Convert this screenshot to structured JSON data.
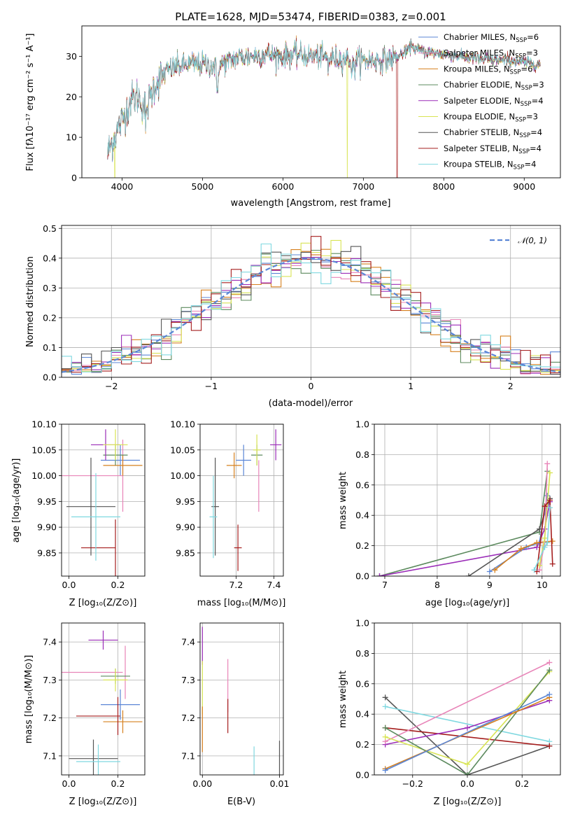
{
  "chart_data": [
    {
      "type": "line",
      "title": "PLATE=1628, MJD=53474, FIBERID=0383, z=0.001",
      "xlabel": "wavelength [Angstrom, rest frame]",
      "ylabel": "Flux [fλ10⁻¹⁷ erg cm⁻² s⁻¹ A⁻¹]",
      "xlim": [
        3500,
        9450
      ],
      "ylim": [
        0,
        37.5
      ],
      "xticks": [
        "4000",
        "5000",
        "6000",
        "7000",
        "8000",
        "9000"
      ],
      "yticks": [
        "0",
        "10",
        "20",
        "30"
      ],
      "legend": "upper-right",
      "series": [
        {
          "name": "Chabrier MILES, N_SSP=6",
          "color": "#5b86d6"
        },
        {
          "name": "Salpeter MILES, N_SSP=3",
          "color": "#e884b8"
        },
        {
          "name": "Kroupa MILES, N_SSP=6",
          "color": "#d6801e"
        },
        {
          "name": "Chabrier ELODIE, N_SSP=3",
          "color": "#5c8a5e"
        },
        {
          "name": "Salpeter ELODIE, N_SSP=4",
          "color": "#9b2db8"
        },
        {
          "name": "Kroupa ELODIE, N_SSP=3",
          "color": "#d8e454"
        },
        {
          "name": "Chabrier STELIB, N_SSP=4",
          "color": "#555555"
        },
        {
          "name": "Salpeter STELIB, N_SSP=4",
          "color": "#a51e1e"
        },
        {
          "name": "Kroupa STELIB, N_SSP=4",
          "color": "#7fd8e0"
        }
      ],
      "continuum": {
        "x": [
          3820,
          3900,
          4000,
          4100,
          4200,
          4300,
          4400,
          4500,
          4600,
          4800,
          5000,
          5200,
          5400,
          5600,
          5800,
          6000,
          6200,
          6400,
          6600,
          6800,
          7000,
          7200,
          7400,
          7600,
          7800,
          8000,
          8200,
          8400,
          8600,
          8800,
          9000,
          9200
        ],
        "y": [
          6,
          10,
          14,
          19,
          20,
          17,
          23,
          25,
          27,
          28,
          28,
          27.5,
          29.5,
          30,
          30.5,
          30,
          30.5,
          30,
          29.5,
          29.5,
          29,
          29,
          29.5,
          32,
          31,
          30.5,
          30,
          29.5,
          29,
          29,
          28.5,
          28
        ]
      },
      "dropouts": [
        {
          "series": "Kroupa ELODIE, N_SSP=3",
          "x": 6800
        },
        {
          "series": "Salpeter STELIB, N_SSP=4",
          "x": 7420
        },
        {
          "series": "Kroupa ELODIE, N_SSP=3",
          "x": 3910
        }
      ]
    },
    {
      "type": "step",
      "xlabel": "(data-model)/error",
      "ylabel": "Normed distribution",
      "xlim": [
        -2.5,
        2.5
      ],
      "ylim": [
        0,
        0.51
      ],
      "xticks": [
        "−2",
        "−1",
        "0",
        "1",
        "2"
      ],
      "yticks": [
        "0.0",
        "0.1",
        "0.2",
        "0.3",
        "0.4",
        "0.5"
      ],
      "grid": true,
      "legend": "upper-right",
      "reference": {
        "name": "𝒩(0, 1)",
        "color": "#5b86d6",
        "mean": 0,
        "sigma": 1
      },
      "bin_width": 0.1,
      "bin_start": -2.5
    },
    {
      "type": "errorbar",
      "xlabel": "Z [log₁₀(Z/Z⊙)]",
      "ylabel": "age  [log₁₀(age/yr)]",
      "xlim": [
        -0.03,
        0.31
      ],
      "ylim": [
        9.805,
        10.1
      ],
      "xticks": [
        "0.0",
        "0.2"
      ],
      "yticks": [
        "9.85",
        "9.90",
        "9.95",
        "10.00",
        "10.05",
        "10.10"
      ],
      "grid": true,
      "points": [
        {
          "color": "#5b86d6",
          "x": 0.21,
          "y": 10.03,
          "xerr": 0.08,
          "yerr": 0.03
        },
        {
          "color": "#e884b8",
          "x": 0.08,
          "y": 10.0,
          "xerr": 0.14,
          "yerr": 0.0
        },
        {
          "color": "#e884b8",
          "x": 0.22,
          "y": 10.0,
          "xerr": 0.0,
          "yerr": 0.07
        },
        {
          "color": "#d6801e",
          "x": 0.22,
          "y": 10.02,
          "xerr": 0.08,
          "yerr": 0.02
        },
        {
          "color": "#5c8a5e",
          "x": 0.19,
          "y": 10.04,
          "xerr": 0.05,
          "yerr": 0.02
        },
        {
          "color": "#9b2db8",
          "x": 0.15,
          "y": 10.06,
          "xerr": 0.06,
          "yerr": 0.03
        },
        {
          "color": "#d8e454",
          "x": 0.19,
          "y": 10.06,
          "xerr": 0.05,
          "yerr": 0.03
        },
        {
          "color": "#555555",
          "x": 0.09,
          "y": 9.94,
          "xerr": 0.1,
          "yerr": 0.095
        },
        {
          "color": "#a51e1e",
          "x": 0.12,
          "y": 9.86,
          "xerr": 0.07,
          "yerr": 0.0
        },
        {
          "color": "#a51e1e",
          "x": 0.19,
          "y": 9.86,
          "xerr": 0.0,
          "yerr": 0.055
        },
        {
          "color": "#7fd8e0",
          "x": 0.11,
          "y": 9.92,
          "xerr": 0.1,
          "yerr": 0.085
        }
      ]
    },
    {
      "type": "errorbar",
      "xlabel": "mass [log₁₀(M/M⊙)]",
      "ylabel": "",
      "xlim": [
        7.01,
        7.45
      ],
      "ylim": [
        9.805,
        10.1
      ],
      "xticks": [
        "7.2",
        "7.4"
      ],
      "yticks": [
        "9.85",
        "9.90",
        "9.95",
        "10.00",
        "10.05",
        "10.10"
      ],
      "grid": true,
      "points": [
        {
          "color": "#5b86d6",
          "x": 7.24,
          "y": 10.03,
          "xerr": 0.04,
          "yerr": 0.03
        },
        {
          "color": "#e884b8",
          "x": 7.32,
          "y": 9.98,
          "xerr": 0.0,
          "yerr": 0.05
        },
        {
          "color": "#d6801e",
          "x": 7.19,
          "y": 10.02,
          "xerr": 0.04,
          "yerr": 0.025
        },
        {
          "color": "#5c8a5e",
          "x": 7.31,
          "y": 10.04,
          "xerr": 0.03,
          "yerr": 0.02
        },
        {
          "color": "#9b2db8",
          "x": 7.41,
          "y": 10.06,
          "xerr": 0.03,
          "yerr": 0.03
        },
        {
          "color": "#d8e454",
          "x": 7.31,
          "y": 10.05,
          "xerr": 0.02,
          "yerr": 0.03
        },
        {
          "color": "#555555",
          "x": 7.09,
          "y": 9.94,
          "xerr": 0.02,
          "yerr": 0.095
        },
        {
          "color": "#a51e1e",
          "x": 7.21,
          "y": 9.86,
          "xerr": 0.02,
          "yerr": 0.045
        },
        {
          "color": "#7fd8e0",
          "x": 7.08,
          "y": 9.92,
          "xerr": 0.02,
          "yerr": 0.08
        }
      ]
    },
    {
      "type": "line",
      "xlabel": "age  [log₁₀(age/yr)]",
      "ylabel": "mass weight",
      "xlim": [
        6.8,
        10.35
      ],
      "ylim": [
        0,
        1.0
      ],
      "xticks": [
        "7",
        "8",
        "9",
        "10"
      ],
      "yticks": [
        "0.0",
        "0.2",
        "0.4",
        "0.6",
        "0.8",
        "1.0"
      ],
      "grid": true,
      "series": [
        {
          "color": "#5c8a5e",
          "x": [
            6.9,
            9.95,
            10.1
          ],
          "y": [
            0.0,
            0.29,
            0.69
          ]
        },
        {
          "color": "#9b2db8",
          "x": [
            6.9,
            9.9,
            10.05,
            10.15
          ],
          "y": [
            0.0,
            0.19,
            0.31,
            0.49
          ]
        },
        {
          "color": "#555555",
          "x": [
            8.6,
            9.95,
            10.15
          ],
          "y": [
            0.0,
            0.31,
            0.51
          ]
        },
        {
          "color": "#5b86d6",
          "x": [
            9.0,
            9.7,
            9.95,
            10.1
          ],
          "y": [
            0.03,
            0.19,
            0.22,
            0.53
          ]
        },
        {
          "color": "#d6801e",
          "x": [
            9.1,
            9.6,
            9.9,
            10.2
          ],
          "y": [
            0.04,
            0.18,
            0.22,
            0.23
          ]
        },
        {
          "color": "#e884b8",
          "x": [
            9.95,
            10.05,
            10.1
          ],
          "y": [
            0.04,
            0.22,
            0.74
          ]
        },
        {
          "color": "#d8e454",
          "x": [
            9.95,
            10.05,
            10.15
          ],
          "y": [
            0.07,
            0.25,
            0.68
          ]
        },
        {
          "color": "#a51e1e",
          "x": [
            9.9,
            10.05,
            10.15,
            10.2
          ],
          "y": [
            0.03,
            0.46,
            0.5,
            0.08
          ]
        },
        {
          "color": "#7fd8e0",
          "x": [
            9.85,
            10.05,
            10.1,
            10.15
          ],
          "y": [
            0.04,
            0.19,
            0.22,
            0.45
          ]
        }
      ]
    },
    {
      "type": "errorbar",
      "xlabel": "Z [log₁₀(Z/Z⊙)]",
      "ylabel": "mass [log₁₀(M/M⊙)]",
      "xlim": [
        -0.03,
        0.31
      ],
      "ylim": [
        7.05,
        7.45
      ],
      "xticks": [
        "0.0",
        "0.2"
      ],
      "yticks": [
        "7.1",
        "7.2",
        "7.3",
        "7.4"
      ],
      "grid": true,
      "points": [
        {
          "color": "#5b86d6",
          "x": 0.21,
          "y": 7.235,
          "xerr": 0.08,
          "yerr": 0.04
        },
        {
          "color": "#e884b8",
          "x": 0.07,
          "y": 7.32,
          "xerr": 0.15,
          "yerr": 0.0
        },
        {
          "color": "#e884b8",
          "x": 0.23,
          "y": 7.32,
          "xerr": 0.0,
          "yerr": 0.07
        },
        {
          "color": "#d6801e",
          "x": 0.22,
          "y": 7.19,
          "xerr": 0.08,
          "yerr": 0.03
        },
        {
          "color": "#5c8a5e",
          "x": 0.19,
          "y": 7.31,
          "xerr": 0.06,
          "yerr": 0.02
        },
        {
          "color": "#9b2db8",
          "x": 0.14,
          "y": 7.405,
          "xerr": 0.06,
          "yerr": 0.025
        },
        {
          "color": "#d8e454",
          "x": 0.19,
          "y": 7.3,
          "xerr": 0.05,
          "yerr": 0.03
        },
        {
          "color": "#555555",
          "x": 0.1,
          "y": 7.093,
          "xerr": 0.1,
          "yerr": 0.05
        },
        {
          "color": "#a51e1e",
          "x": 0.12,
          "y": 7.205,
          "xerr": 0.09,
          "yerr": 0.0
        },
        {
          "color": "#a51e1e",
          "x": 0.2,
          "y": 7.205,
          "xerr": 0.0,
          "yerr": 0.05
        },
        {
          "color": "#7fd8e0",
          "x": 0.12,
          "y": 7.085,
          "xerr": 0.09,
          "yerr": 0.045
        }
      ]
    },
    {
      "type": "errorbar",
      "xlabel": "E(B-V)",
      "ylabel": "",
      "xlim": [
        -0.0003,
        0.0105
      ],
      "ylim": [
        7.05,
        7.45
      ],
      "xticks": [
        "0.00",
        "0.01"
      ],
      "yticks": [
        "7.1",
        "7.2",
        "7.3",
        "7.4"
      ],
      "grid": true,
      "points": [
        {
          "color": "#9b2db8",
          "x": 0.0,
          "y": 7.39,
          "xerr": 0.0,
          "yerr": 0.05
        },
        {
          "color": "#d8e454",
          "x": 0.0,
          "y": 7.28,
          "xerr": 0.0,
          "yerr": 0.07
        },
        {
          "color": "#d6801e",
          "x": 0.0,
          "y": 7.17,
          "xerr": 0.0,
          "yerr": 0.06
        },
        {
          "color": "#e884b8",
          "x": 0.0033,
          "y": 7.285,
          "xerr": 0.0,
          "yerr": 0.07
        },
        {
          "color": "#a51e1e",
          "x": 0.0033,
          "y": 7.205,
          "xerr": 0.0,
          "yerr": 0.045
        },
        {
          "color": "#7fd8e0",
          "x": 0.0067,
          "y": 7.085,
          "xerr": 0.0,
          "yerr": 0.04
        },
        {
          "color": "#555555",
          "x": 0.01,
          "y": 7.095,
          "xerr": 0.0,
          "yerr": 0.045
        }
      ]
    },
    {
      "type": "line",
      "xlabel": "Z [log₁₀(Z/Z⊙)]",
      "ylabel": "mass weight",
      "xlim": [
        -0.34,
        0.34
      ],
      "ylim": [
        0,
        1.0
      ],
      "xticks": [
        "−0.2",
        "0.0",
        "0.2"
      ],
      "yticks": [
        "0.0",
        "0.2",
        "0.4",
        "0.6",
        "0.8",
        "1.0"
      ],
      "grid": true,
      "series": [
        {
          "color": "#555555",
          "x": [
            -0.3,
            0.0,
            0.3
          ],
          "y": [
            0.51,
            0.0,
            0.19
          ]
        },
        {
          "color": "#7fd8e0",
          "x": [
            -0.3,
            0.3
          ],
          "y": [
            0.45,
            0.22
          ]
        },
        {
          "color": "#a51e1e",
          "x": [
            -0.3,
            0.3
          ],
          "y": [
            0.31,
            0.19
          ]
        },
        {
          "color": "#9b2db8",
          "x": [
            -0.3,
            0.0,
            0.3
          ],
          "y": [
            0.2,
            0.31,
            0.49
          ]
        },
        {
          "color": "#e884b8",
          "x": [
            -0.3,
            0.3
          ],
          "y": [
            0.22,
            0.74
          ]
        },
        {
          "color": "#d8e454",
          "x": [
            -0.3,
            0.0,
            0.3
          ],
          "y": [
            0.25,
            0.07,
            0.68
          ]
        },
        {
          "color": "#5c8a5e",
          "x": [
            -0.3,
            0.0,
            0.3
          ],
          "y": [
            0.31,
            0.0,
            0.69
          ]
        },
        {
          "color": "#d6801e",
          "x": [
            -0.3,
            0.3
          ],
          "y": [
            0.04,
            0.51
          ]
        },
        {
          "color": "#5b86d6",
          "x": [
            -0.3,
            0.3
          ],
          "y": [
            0.03,
            0.53
          ]
        }
      ]
    }
  ]
}
